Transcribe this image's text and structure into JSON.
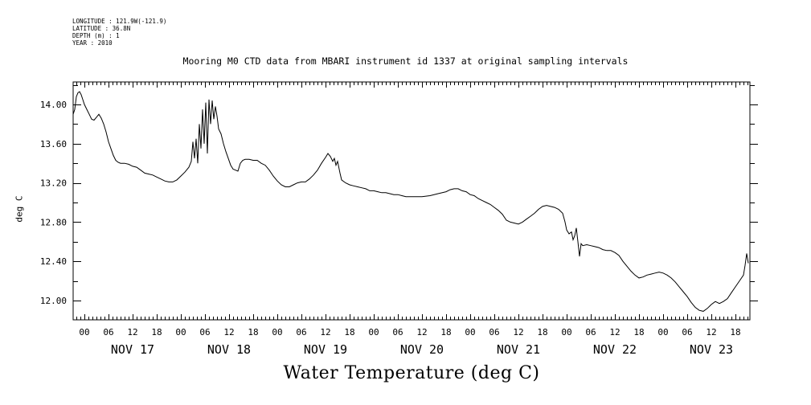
{
  "header": {
    "meta_lines": [
      "LONGITUDE : 121.9W(-121.9)",
      "LATITUDE : 36.8N",
      "DEPTH (m) : 1",
      "YEAR : 2010"
    ]
  },
  "chart_data": {
    "type": "line",
    "title": "Mooring M0 CTD data from MBARI instrument id 1337 at original sampling intervals",
    "xlabel": "Water Temperature (deg C)",
    "ylabel": "deg C",
    "ylim": [
      11.8,
      14.2
    ],
    "y_ticks": [
      "14.00",
      "13.60",
      "13.20",
      "12.80",
      "12.40",
      "12.00"
    ],
    "y_tick_values": [
      14.0,
      13.6,
      13.2,
      12.8,
      12.4,
      12.0
    ],
    "x_unit": "hours since NOV 17 00:00 (2010)",
    "xlim": [
      -2.8,
      165.6
    ],
    "x_hour_ticks": [
      "00",
      "06",
      "12",
      "18",
      "00",
      "06",
      "12",
      "18",
      "00",
      "06",
      "12",
      "18",
      "00",
      "06",
      "12",
      "18",
      "00",
      "06",
      "12",
      "18",
      "00",
      "06",
      "12",
      "18",
      "00",
      "06",
      "12",
      "18"
    ],
    "x_hour_tick_values": [
      0,
      6,
      12,
      18,
      24,
      30,
      36,
      42,
      48,
      54,
      60,
      66,
      72,
      78,
      84,
      90,
      96,
      102,
      108,
      114,
      120,
      126,
      132,
      138,
      144,
      150,
      156,
      162
    ],
    "x_day_labels": [
      "NOV 17",
      "NOV 18",
      "NOV 19",
      "NOV 20",
      "NOV 21",
      "NOV 22",
      "NOV 23"
    ],
    "x_day_label_values": [
      12,
      36,
      60,
      84,
      108,
      132,
      156
    ],
    "grid": false,
    "legend": "none",
    "series": [
      {
        "name": "Water Temperature",
        "points": [
          [
            -2.8,
            13.9
          ],
          [
            -2.4,
            13.95
          ],
          [
            -2.0,
            14.08
          ],
          [
            -1.6,
            14.12
          ],
          [
            -1.2,
            14.13
          ],
          [
            -0.8,
            14.1
          ],
          [
            -0.4,
            14.05
          ],
          [
            0,
            14.0
          ],
          [
            0.6,
            13.95
          ],
          [
            1.2,
            13.9
          ],
          [
            1.8,
            13.85
          ],
          [
            2.4,
            13.84
          ],
          [
            3.0,
            13.87
          ],
          [
            3.6,
            13.9
          ],
          [
            4.2,
            13.86
          ],
          [
            4.8,
            13.8
          ],
          [
            5.4,
            13.72
          ],
          [
            6.0,
            13.62
          ],
          [
            6.6,
            13.55
          ],
          [
            7.2,
            13.48
          ],
          [
            7.8,
            13.43
          ],
          [
            8.4,
            13.41
          ],
          [
            9.0,
            13.4
          ],
          [
            10,
            13.4
          ],
          [
            11,
            13.39
          ],
          [
            12,
            13.37
          ],
          [
            13,
            13.36
          ],
          [
            14,
            13.33
          ],
          [
            15,
            13.3
          ],
          [
            16,
            13.29
          ],
          [
            17,
            13.28
          ],
          [
            18,
            13.26
          ],
          [
            19,
            13.24
          ],
          [
            20,
            13.22
          ],
          [
            21,
            13.21
          ],
          [
            22,
            13.21
          ],
          [
            23,
            13.23
          ],
          [
            24,
            13.27
          ],
          [
            25,
            13.31
          ],
          [
            26,
            13.36
          ],
          [
            26.6,
            13.42
          ],
          [
            27.0,
            13.62
          ],
          [
            27.4,
            13.45
          ],
          [
            27.8,
            13.65
          ],
          [
            28.2,
            13.4
          ],
          [
            28.6,
            13.8
          ],
          [
            29.0,
            13.55
          ],
          [
            29.4,
            13.95
          ],
          [
            29.8,
            13.6
          ],
          [
            30.2,
            14.02
          ],
          [
            30.6,
            13.5
          ],
          [
            31.0,
            14.05
          ],
          [
            31.4,
            13.8
          ],
          [
            31.8,
            14.04
          ],
          [
            32.2,
            13.85
          ],
          [
            32.6,
            13.98
          ],
          [
            33.0,
            13.88
          ],
          [
            33.4,
            13.75
          ],
          [
            34.0,
            13.7
          ],
          [
            34.6,
            13.6
          ],
          [
            35.2,
            13.52
          ],
          [
            35.8,
            13.45
          ],
          [
            36.4,
            13.38
          ],
          [
            37.0,
            13.34
          ],
          [
            37.6,
            13.33
          ],
          [
            38.2,
            13.32
          ],
          [
            38.8,
            13.4
          ],
          [
            39.4,
            13.43
          ],
          [
            40,
            13.44
          ],
          [
            41,
            13.44
          ],
          [
            42,
            13.43
          ],
          [
            43,
            13.43
          ],
          [
            44,
            13.4
          ],
          [
            45,
            13.38
          ],
          [
            46,
            13.33
          ],
          [
            47,
            13.27
          ],
          [
            48,
            13.22
          ],
          [
            49,
            13.18
          ],
          [
            50,
            13.16
          ],
          [
            51,
            13.16
          ],
          [
            52,
            13.18
          ],
          [
            53,
            13.2
          ],
          [
            54,
            13.21
          ],
          [
            55,
            13.21
          ],
          [
            56,
            13.24
          ],
          [
            57,
            13.28
          ],
          [
            58,
            13.33
          ],
          [
            59,
            13.4
          ],
          [
            60,
            13.46
          ],
          [
            60.6,
            13.5
          ],
          [
            61.2,
            13.47
          ],
          [
            61.8,
            13.42
          ],
          [
            62.2,
            13.45
          ],
          [
            62.6,
            13.38
          ],
          [
            63.0,
            13.42
          ],
          [
            63.6,
            13.3
          ],
          [
            64,
            13.23
          ],
          [
            65,
            13.2
          ],
          [
            66,
            13.18
          ],
          [
            67,
            13.17
          ],
          [
            68,
            13.16
          ],
          [
            69,
            13.15
          ],
          [
            70,
            13.14
          ],
          [
            71,
            13.12
          ],
          [
            72,
            13.12
          ],
          [
            73,
            13.11
          ],
          [
            74,
            13.1
          ],
          [
            75,
            13.1
          ],
          [
            76,
            13.09
          ],
          [
            77,
            13.08
          ],
          [
            78,
            13.08
          ],
          [
            79,
            13.07
          ],
          [
            80,
            13.06
          ],
          [
            82,
            13.06
          ],
          [
            84,
            13.06
          ],
          [
            86,
            13.07
          ],
          [
            88,
            13.09
          ],
          [
            90,
            13.11
          ],
          [
            91,
            13.13
          ],
          [
            92,
            13.14
          ],
          [
            93,
            13.14
          ],
          [
            94,
            13.12
          ],
          [
            95,
            13.11
          ],
          [
            96,
            13.08
          ],
          [
            97,
            13.07
          ],
          [
            98,
            13.04
          ],
          [
            99,
            13.02
          ],
          [
            100,
            13.0
          ],
          [
            101,
            12.98
          ],
          [
            102,
            12.95
          ],
          [
            103,
            12.92
          ],
          [
            104,
            12.88
          ],
          [
            105,
            12.82
          ],
          [
            106,
            12.8
          ],
          [
            107,
            12.79
          ],
          [
            108,
            12.78
          ],
          [
            109,
            12.8
          ],
          [
            110,
            12.83
          ],
          [
            111,
            12.86
          ],
          [
            112,
            12.89
          ],
          [
            113,
            12.93
          ],
          [
            114,
            12.96
          ],
          [
            115,
            12.97
          ],
          [
            116,
            12.96
          ],
          [
            117,
            12.95
          ],
          [
            118,
            12.93
          ],
          [
            119,
            12.89
          ],
          [
            119.6,
            12.8
          ],
          [
            120,
            12.72
          ],
          [
            120.6,
            12.68
          ],
          [
            121.2,
            12.7
          ],
          [
            121.6,
            12.62
          ],
          [
            122.0,
            12.66
          ],
          [
            122.4,
            12.74
          ],
          [
            122.8,
            12.6
          ],
          [
            123.2,
            12.45
          ],
          [
            123.6,
            12.58
          ],
          [
            124,
            12.56
          ],
          [
            125,
            12.57
          ],
          [
            126,
            12.56
          ],
          [
            127,
            12.55
          ],
          [
            128,
            12.54
          ],
          [
            129,
            12.52
          ],
          [
            130,
            12.51
          ],
          [
            131,
            12.51
          ],
          [
            132,
            12.49
          ],
          [
            133,
            12.46
          ],
          [
            134,
            12.4
          ],
          [
            135,
            12.35
          ],
          [
            136,
            12.3
          ],
          [
            137,
            12.26
          ],
          [
            138,
            12.23
          ],
          [
            139,
            12.24
          ],
          [
            140,
            12.26
          ],
          [
            141,
            12.27
          ],
          [
            142,
            12.28
          ],
          [
            143,
            12.29
          ],
          [
            144,
            12.28
          ],
          [
            145,
            12.26
          ],
          [
            146,
            12.23
          ],
          [
            147,
            12.19
          ],
          [
            148,
            12.14
          ],
          [
            149,
            12.09
          ],
          [
            150,
            12.04
          ],
          [
            151,
            11.98
          ],
          [
            152,
            11.93
          ],
          [
            153,
            11.9
          ],
          [
            154,
            11.89
          ],
          [
            155,
            11.92
          ],
          [
            156,
            11.96
          ],
          [
            157,
            11.99
          ],
          [
            158,
            11.97
          ],
          [
            159,
            11.99
          ],
          [
            160,
            12.02
          ],
          [
            161,
            12.08
          ],
          [
            162,
            12.14
          ],
          [
            163,
            12.2
          ],
          [
            164,
            12.26
          ],
          [
            164.4,
            12.36
          ],
          [
            164.8,
            12.48
          ],
          [
            165.2,
            12.38
          ]
        ]
      }
    ]
  }
}
